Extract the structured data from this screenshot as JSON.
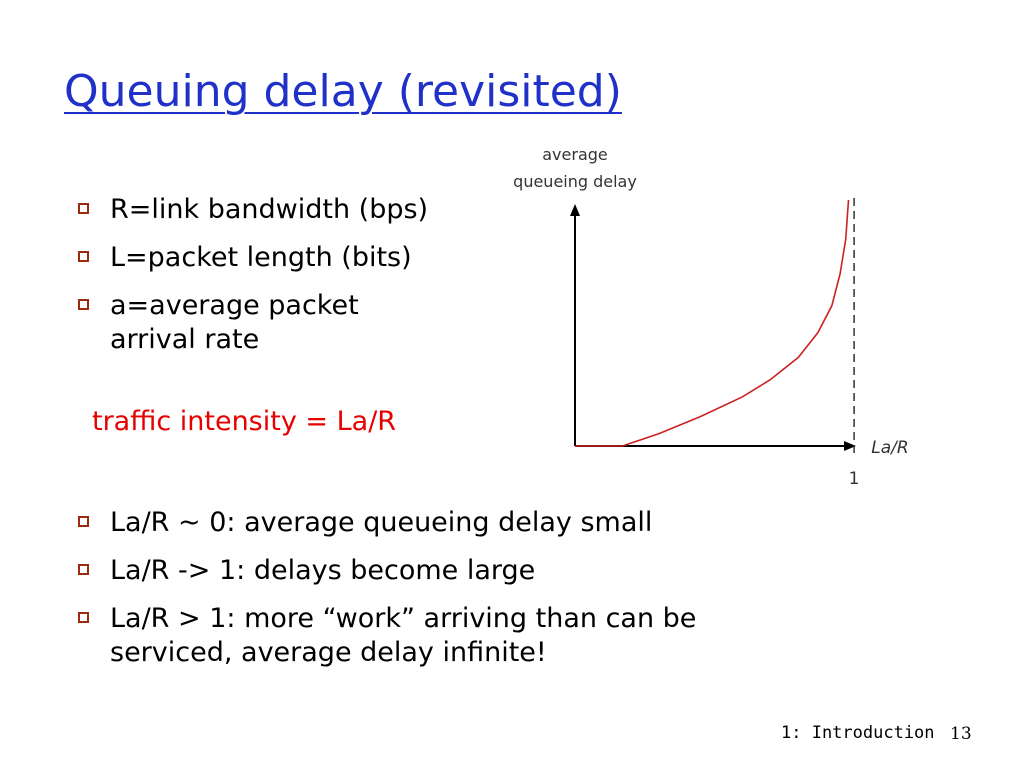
{
  "slide": {
    "title": "Queuing delay (revisited)",
    "top_bullets": [
      "R=link bandwidth (bps)",
      "L=packet length (bits)",
      "a=average packet arrival rate"
    ],
    "traffic_intensity": "traffic intensity = La/R",
    "bottom_bullets": [
      "La/R ~ 0: average queueing delay small",
      "La/R -> 1: delays become large",
      "La/R > 1: more “work” arriving than can be serviced, average delay infinite!"
    ],
    "footer": "1: Introduction",
    "page_number": "13"
  },
  "colors": {
    "title": "#1f31c8",
    "bullet_box": "#9c2a10",
    "intensity": "#e60000",
    "curve": "#cc2222"
  },
  "chart_data": {
    "type": "line",
    "ylabel_line1": "average",
    "ylabel_line2": "queueing delay",
    "xlabel": "La/R",
    "asymptote_label": "1",
    "xlim": [
      0,
      1.1
    ],
    "ylim": [
      0,
      1
    ],
    "asymptote_x": 1,
    "series": [
      {
        "x": [
          0,
          0.17,
          0.3,
          0.45,
          0.6,
          0.7,
          0.8,
          0.87,
          0.92,
          0.95,
          0.97,
          0.98
        ],
        "y": [
          0,
          0,
          0.05,
          0.12,
          0.2,
          0.27,
          0.36,
          0.46,
          0.57,
          0.7,
          0.84,
          1.0
        ]
      }
    ]
  }
}
